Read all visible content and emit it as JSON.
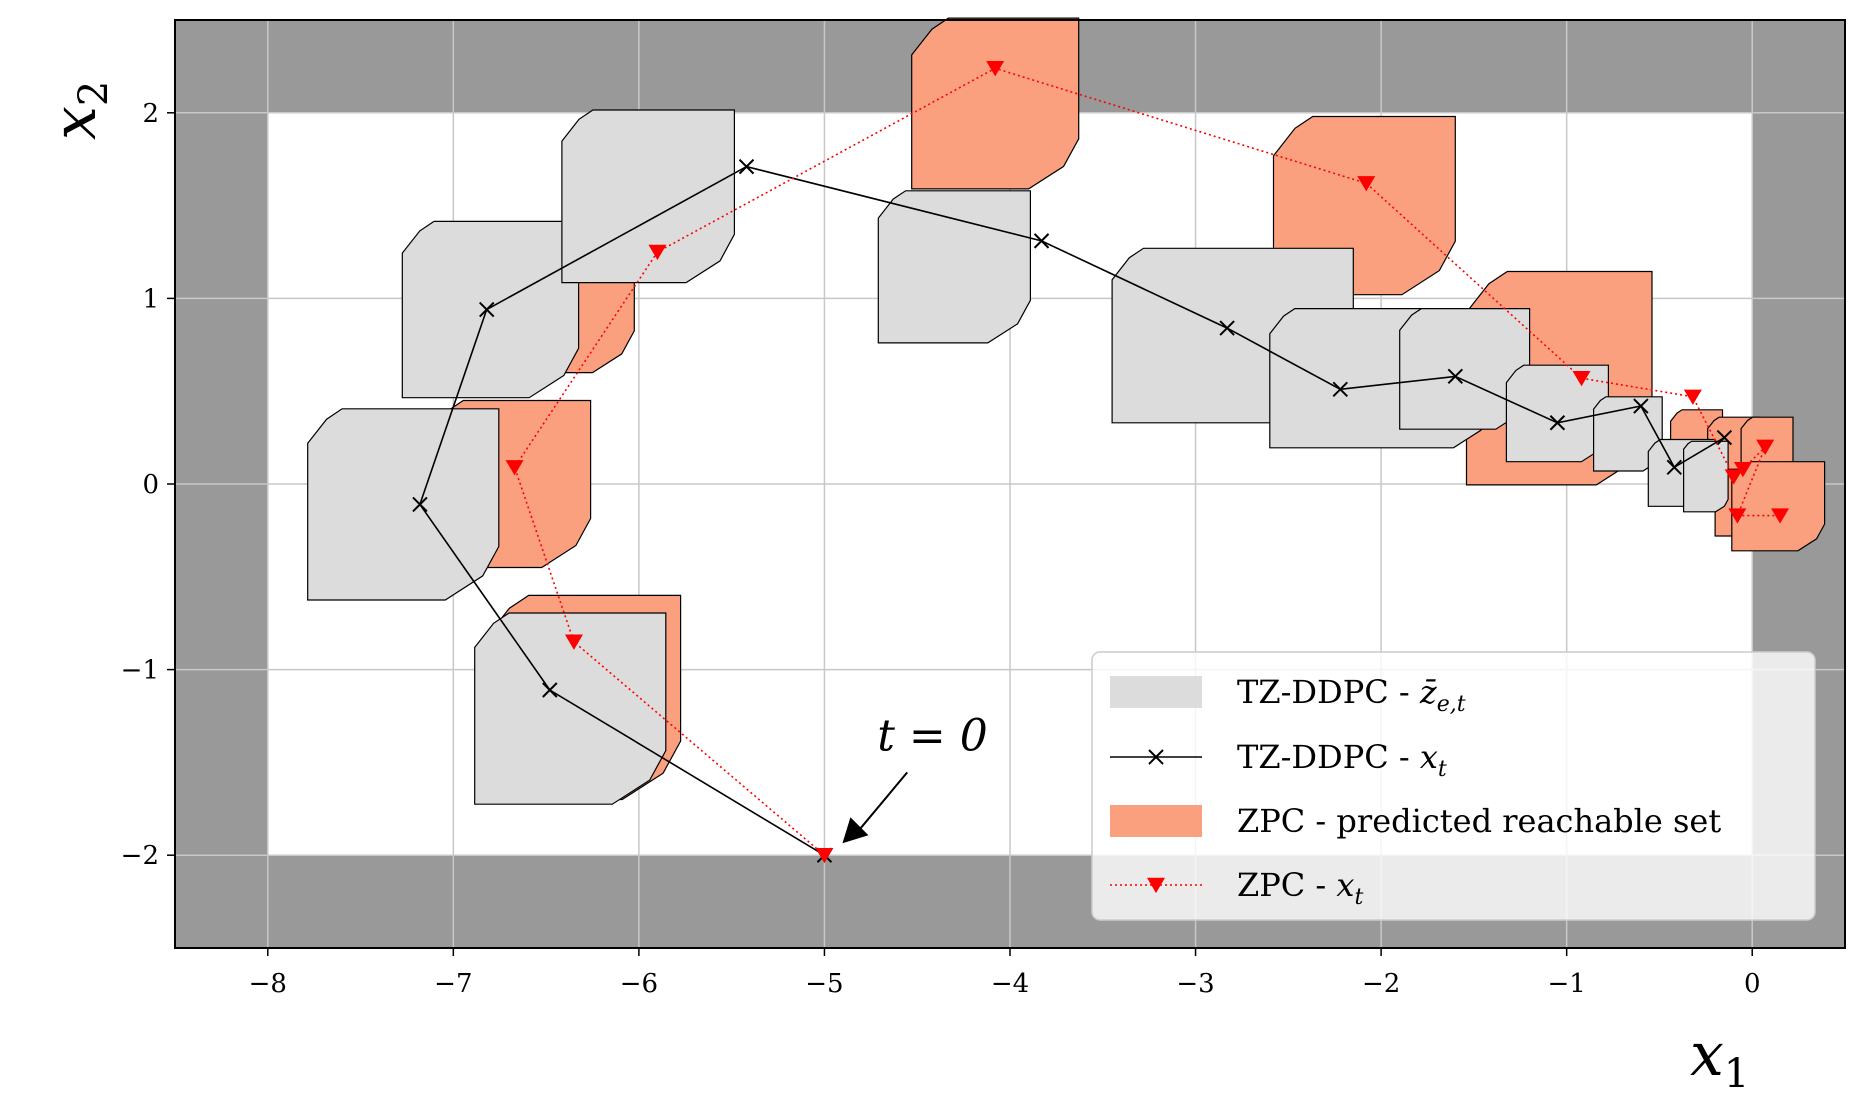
{
  "chart_data": {
    "type": "line",
    "title": "",
    "xlabel": "x",
    "xlabel_sub": "1",
    "ylabel": "x",
    "ylabel_sub": "2",
    "xlim": [
      -8.5,
      0.5
    ],
    "ylim": [
      -2.5,
      2.5
    ],
    "xticks": [
      -8,
      -7,
      -6,
      -5,
      -4,
      -3,
      -2,
      -1,
      0
    ],
    "xtick_labels": [
      "−8",
      "−7",
      "−6",
      "−5",
      "−4",
      "−3",
      "−2",
      "−1",
      "0"
    ],
    "yticks": [
      -2,
      -1,
      0,
      1,
      2
    ],
    "ytick_labels": [
      "−2",
      "−1",
      "0",
      "1",
      "2"
    ],
    "grid": true,
    "legend_position": "lower-right",
    "constraint_box": {
      "x": [
        -8,
        0
      ],
      "y": [
        -2,
        2
      ]
    },
    "colors": {
      "forbidden": "#999999",
      "tz_set": "#dcdcdc",
      "zpc_set": "#fba07f",
      "tz_line": "#000000",
      "zpc_line": "#ff0000",
      "grid": "#c8c8c8"
    },
    "series": [
      {
        "name": "TZ-DDPC - x_t",
        "legend_label": "TZ-DDPC - ",
        "legend_math": "x",
        "legend_sub": "t",
        "marker": "x",
        "color": "#000000",
        "x": [
          -5.0,
          -6.48,
          -7.18,
          -6.82,
          -5.42,
          -3.83,
          -2.83,
          -2.22,
          -1.6,
          -1.05,
          -0.6,
          -0.42,
          -0.15
        ],
        "y": [
          -2.0,
          -1.11,
          -0.11,
          0.94,
          1.71,
          1.31,
          0.84,
          0.51,
          0.58,
          0.33,
          0.42,
          0.09,
          0.25
        ]
      },
      {
        "name": "ZPC - x_t",
        "legend_label": "ZPC - ",
        "legend_math": "x",
        "legend_sub": "t",
        "marker": "triangle-down",
        "color": "#ff0000",
        "x": [
          -5.0,
          -6.35,
          -6.67,
          -5.9,
          -4.08,
          -2.08,
          -0.92,
          -0.32,
          -0.1,
          -0.05,
          0.07,
          -0.08,
          0.15
        ],
        "y": [
          -2.0,
          -0.85,
          0.09,
          1.25,
          2.24,
          1.62,
          0.57,
          0.47,
          0.04,
          0.08,
          0.2,
          -0.17,
          -0.17
        ]
      }
    ],
    "tz_sets_legend": {
      "label": "TZ-DDPC - ",
      "math": "z̄",
      "sub": "e,t"
    },
    "zpc_sets_legend": {
      "label": "ZPC - predicted reachable set"
    },
    "tz_sets": [
      {
        "center": [
          -6.8,
          0.94
        ],
        "width": 0.95,
        "height": 0.95
      },
      {
        "center": [
          -5.95,
          1.55
        ],
        "width": 0.93,
        "height": 0.93
      },
      {
        "center": [
          -4.3,
          1.17
        ],
        "width": 0.82,
        "height": 0.82
      },
      {
        "center": [
          -2.8,
          0.8
        ],
        "width": 1.3,
        "height": 0.94
      },
      {
        "center": [
          -2.0,
          0.57
        ],
        "width": 1.2,
        "height": 0.75
      },
      {
        "center": [
          -1.55,
          0.62
        ],
        "width": 0.7,
        "height": 0.65
      },
      {
        "center": [
          -1.05,
          0.38
        ],
        "width": 0.55,
        "height": 0.52
      },
      {
        "center": [
          -0.67,
          0.27
        ],
        "width": 0.37,
        "height": 0.4
      },
      {
        "center": [
          -0.38,
          0.06
        ],
        "width": 0.36,
        "height": 0.36
      },
      {
        "center": [
          -0.25,
          0.04
        ],
        "width": 0.24,
        "height": 0.38
      },
      {
        "center": [
          -7.27,
          -0.11
        ],
        "width": 1.03,
        "height": 1.03
      },
      {
        "center": [
          -6.37,
          -1.21
        ],
        "width": 1.03,
        "height": 1.03
      }
    ],
    "zpc_sets": [
      {
        "center": [
          -6.7,
          0.0
        ],
        "width": 0.88,
        "height": 0.9
      },
      {
        "center": [
          -6.4,
          1.0
        ],
        "width": 0.75,
        "height": 0.8
      },
      {
        "center": [
          -6.3,
          -1.15
        ],
        "width": 1.05,
        "height": 1.1
      },
      {
        "center": [
          -4.08,
          2.05
        ],
        "width": 0.9,
        "height": 0.92
      },
      {
        "center": [
          -2.09,
          1.5
        ],
        "width": 0.98,
        "height": 0.96
      },
      {
        "center": [
          -1.04,
          0.57
        ],
        "width": 1.0,
        "height": 1.15
      },
      {
        "center": [
          -0.3,
          0.22
        ],
        "width": 0.28,
        "height": 0.36
      },
      {
        "center": [
          -0.1,
          0.18
        ],
        "width": 0.28,
        "height": 0.36
      },
      {
        "center": [
          0.08,
          0.18
        ],
        "width": 0.28,
        "height": 0.36
      },
      {
        "center": [
          -0.06,
          -0.1
        ],
        "width": 0.28,
        "height": 0.36
      },
      {
        "center": [
          0.14,
          -0.12
        ],
        "width": 0.5,
        "height": 0.48
      }
    ],
    "annotation": {
      "text": "t = 0",
      "target": [
        -5.0,
        -2.0
      ],
      "text_anchor": [
        -4.5,
        -1.5
      ]
    }
  }
}
